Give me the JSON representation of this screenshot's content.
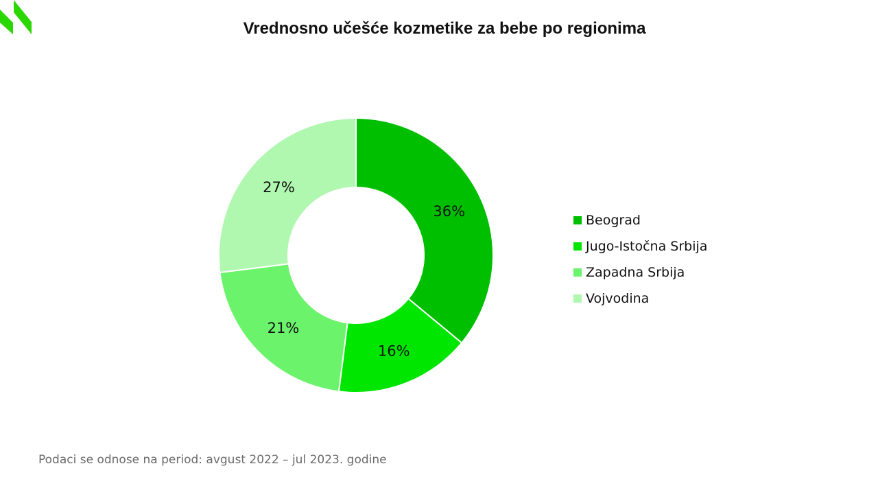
{
  "logo_icon": "brand-logo-icon",
  "brand_color": "#2bd700",
  "chart_data": {
    "type": "pie",
    "style": "donut",
    "title": "Vrednosno učešće kozmetike za bebe po regionima",
    "categories": [
      "Beograd",
      "Jugo-Istočna Srbija",
      "Zapadna Srbija",
      "Vojvodina"
    ],
    "values": [
      36,
      16,
      21,
      27
    ],
    "labels": [
      "36%",
      "16%",
      "21%",
      "27%"
    ],
    "colors": [
      "#00bf00",
      "#00e600",
      "#6cf36c",
      "#b0f7b0"
    ],
    "legend_position": "right"
  },
  "footnote": "Podaci se odnose na period: avgust 2022 – jul 2023. godine"
}
